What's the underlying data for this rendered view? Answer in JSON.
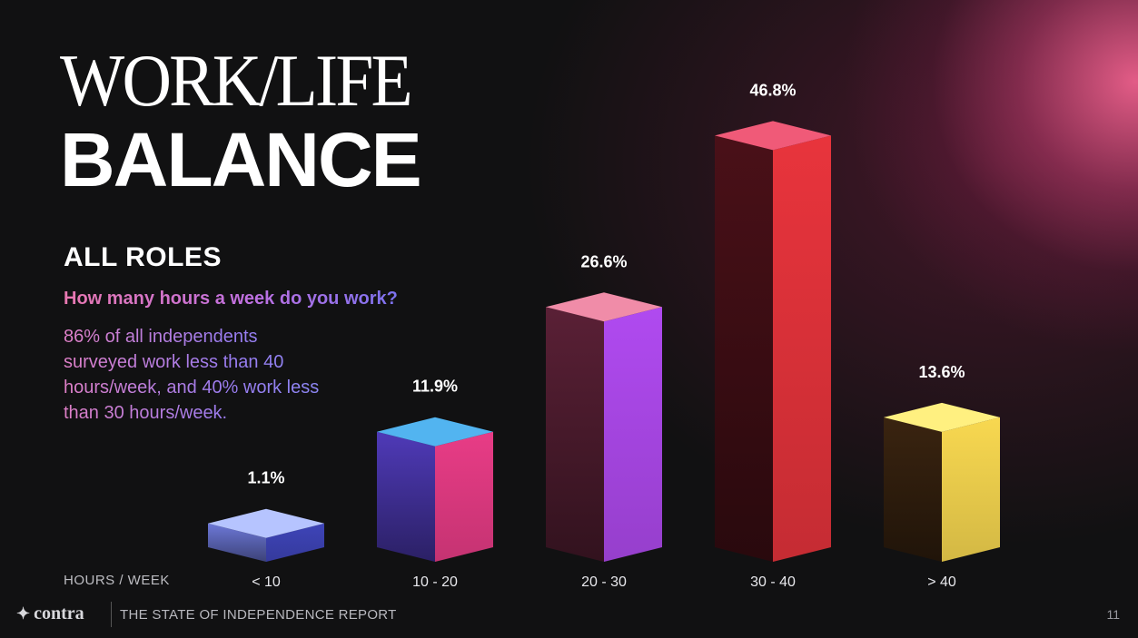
{
  "header": {
    "title_line1": "WORK/LIFE",
    "title_line2": "BALANCE"
  },
  "section": {
    "title": "ALL ROLES",
    "question": "How many hours a week do you work?",
    "note": "86% of all independents surveyed work less than 40 hours/week, and 40% work less than 30 hours/week."
  },
  "chart_data": {
    "type": "bar",
    "xlabel": "HOURS / WEEK",
    "categories": [
      "< 10",
      "10 - 20",
      "20 - 30",
      "30 - 40",
      "> 40"
    ],
    "values": [
      1.1,
      11.9,
      26.6,
      46.8,
      13.6
    ],
    "value_labels": [
      "1.1%",
      "11.9%",
      "26.6%",
      "46.8%",
      "13.6%"
    ],
    "unit": "%",
    "grid": false,
    "colors": [
      {
        "top": "#b6c4ff",
        "left": "#6d78d8",
        "right": "#3e44b8"
      },
      {
        "top": "#52b4f0",
        "left": "#4f3ab8",
        "right": "#e83c86"
      },
      {
        "top": "#f08ca8",
        "left": "#5a2036",
        "right": "#b04af0"
      },
      {
        "top": "#f05a78",
        "left": "#4a1018",
        "right": "#e8343c"
      },
      {
        "top": "#fff080",
        "left": "#3a2410",
        "right": "#f8d850"
      }
    ]
  },
  "footer": {
    "brand": "contra",
    "brand_icon": "star-icon",
    "report": "THE STATE OF INDEPENDENCE REPORT",
    "page": "11"
  }
}
